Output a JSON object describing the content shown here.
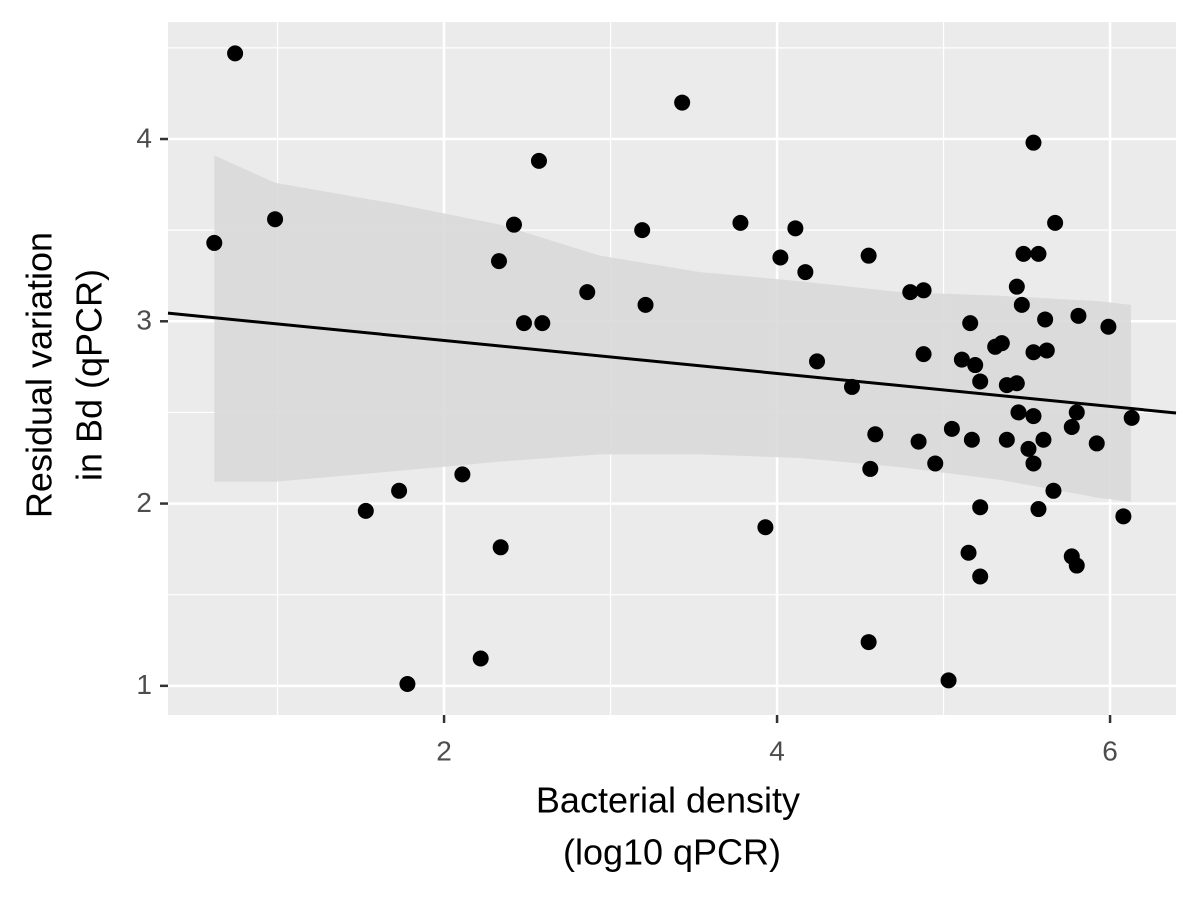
{
  "chart_data": {
    "type": "scatter",
    "xlabel": [
      "Bacterial density",
      "(log10 qPCR)"
    ],
    "ylabel": [
      "Residual variation",
      "in Bd (qPCR)"
    ],
    "xlim": [
      0.342,
      6.396
    ],
    "ylim": [
      0.84,
      4.642
    ],
    "xticks": [
      2,
      4,
      6
    ],
    "yticks": [
      1,
      2,
      3,
      4
    ],
    "grid": true,
    "color": "#000000",
    "x": [
      0.62,
      0.745,
      0.985,
      1.53,
      1.73,
      1.78,
      2.11,
      2.22,
      2.33,
      2.34,
      2.42,
      2.48,
      2.57,
      2.59,
      2.86,
      3.19,
      3.21,
      3.43,
      3.78,
      3.93,
      4.02,
      4.11,
      4.17,
      4.24,
      4.45,
      4.55,
      4.56,
      4.55,
      4.59,
      4.8,
      4.88,
      4.85,
      4.88,
      4.95,
      5.03,
      5.05,
      5.11,
      5.15,
      5.16,
      5.17,
      5.19,
      5.22,
      5.22,
      5.22,
      5.31,
      5.35,
      5.38,
      5.38,
      5.44,
      5.44,
      5.45,
      5.47,
      5.48,
      5.51,
      5.54,
      5.54,
      5.54,
      5.54,
      5.57,
      5.57,
      5.6,
      5.61,
      5.62,
      5.66,
      5.67,
      5.77,
      5.77,
      5.8,
      5.81,
      5.8,
      5.92,
      5.99,
      6.08,
      6.13
    ],
    "values": [
      3.43,
      4.47,
      3.56,
      1.96,
      2.07,
      1.01,
      2.16,
      1.15,
      3.33,
      1.76,
      3.53,
      2.99,
      3.88,
      2.99,
      3.16,
      3.5,
      3.09,
      4.2,
      3.54,
      1.87,
      3.35,
      3.51,
      3.27,
      2.78,
      2.64,
      3.36,
      2.19,
      1.24,
      2.38,
      3.16,
      3.17,
      2.34,
      2.82,
      2.22,
      1.03,
      2.41,
      2.79,
      1.73,
      2.99,
      2.35,
      2.76,
      1.6,
      2.67,
      1.98,
      2.86,
      2.88,
      2.35,
      2.65,
      3.19,
      2.66,
      2.5,
      3.09,
      3.37,
      2.3,
      2.83,
      2.48,
      3.98,
      2.22,
      1.97,
      3.37,
      2.35,
      3.01,
      2.84,
      2.07,
      3.54,
      2.42,
      1.71,
      2.5,
      3.03,
      1.66,
      2.33,
      2.97,
      1.93,
      2.47
    ],
    "fit": {
      "x": [
        0.342,
        6.396
      ],
      "y": [
        3.045,
        2.497
      ],
      "color": "#000000"
    },
    "band": {
      "x": [
        0.62,
        0.985,
        1.736,
        2.336,
        2.937,
        3.538,
        4.138,
        4.739,
        5.339,
        5.94,
        6.126
      ],
      "upper": [
        3.91,
        3.76,
        3.64,
        3.53,
        3.36,
        3.27,
        3.22,
        3.16,
        3.14,
        3.11,
        3.09
      ],
      "lower": [
        2.12,
        2.12,
        2.18,
        2.23,
        2.27,
        2.27,
        2.25,
        2.2,
        2.13,
        2.03,
        2.01
      ],
      "color": "#d9d9d9"
    }
  }
}
